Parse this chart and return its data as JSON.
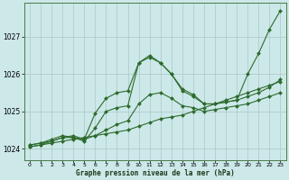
{
  "title": "Graphe pression niveau de la mer (hPa)",
  "bg_color": "#cce8e8",
  "grid_color": "#b0cccc",
  "line_color": "#2d6b2d",
  "marker_color": "#2d6b2d",
  "xlim": [
    -0.5,
    23.5
  ],
  "ylim": [
    1023.7,
    1027.9
  ],
  "yticks": [
    1024,
    1025,
    1026,
    1027
  ],
  "xticks": [
    0,
    1,
    2,
    3,
    4,
    5,
    6,
    7,
    8,
    9,
    10,
    11,
    12,
    13,
    14,
    15,
    16,
    17,
    18,
    19,
    20,
    21,
    22,
    23
  ],
  "series": [
    [
      1024.05,
      1024.1,
      1024.15,
      1024.2,
      1024.25,
      1024.3,
      1024.35,
      1024.4,
      1024.45,
      1024.5,
      1024.6,
      1024.7,
      1024.8,
      1024.85,
      1024.9,
      1025.0,
      1025.1,
      1025.2,
      1025.3,
      1025.4,
      1025.5,
      1025.6,
      1025.7,
      1025.8
    ],
    [
      1024.1,
      1024.15,
      1024.2,
      1024.3,
      1024.3,
      1024.25,
      1024.35,
      1024.5,
      1024.65,
      1024.75,
      1025.2,
      1025.45,
      1025.5,
      1025.35,
      1025.15,
      1025.1,
      1025.0,
      1025.05,
      1025.1,
      1025.15,
      1025.2,
      1025.3,
      1025.4,
      1025.5
    ],
    [
      1024.1,
      1024.15,
      1024.25,
      1024.35,
      1024.3,
      1024.2,
      1024.55,
      1025.0,
      1025.1,
      1025.15,
      1026.3,
      1026.5,
      1026.3,
      1026.0,
      1025.6,
      1025.45,
      1025.2,
      1025.2,
      1025.25,
      1025.3,
      1026.0,
      1026.55,
      1027.2,
      1027.7
    ],
    [
      1024.05,
      1024.1,
      1024.2,
      1024.3,
      1024.35,
      1024.25,
      1024.95,
      1025.35,
      1025.5,
      1025.55,
      1026.3,
      1026.45,
      1026.3,
      1026.0,
      1025.55,
      1025.4,
      1025.2,
      1025.2,
      1025.25,
      1025.3,
      1025.4,
      1025.5,
      1025.65,
      1025.85
    ]
  ]
}
